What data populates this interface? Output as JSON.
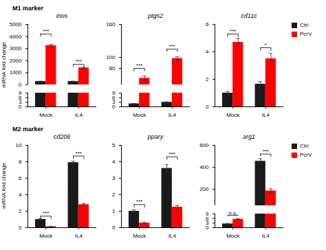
{
  "chart_data": [
    {
      "type": "bar",
      "title": "M1 marker",
      "ylabel": "mRNA fold change",
      "legend": "upper right",
      "categories": [
        "Mock",
        "IL4"
      ],
      "panels": [
        {
          "title": "inos",
          "series": [
            {
              "name": "Ctrl",
              "color": "#1a1a1a",
              "values": [
                280,
                280
              ],
              "errors": [
                25,
                25
              ]
            },
            {
              "name": "PcrV",
              "color": "#ff0000",
              "values": [
                3250,
                1400
              ],
              "errors": [
                90,
                55
              ]
            }
          ],
          "ylim": [
            [
              0,
              9
            ],
            [
              0,
              5000
            ]
          ],
          "yticks": [
            [
              0,
              3,
              6,
              9
            ],
            [
              0,
              1000,
              2000,
              3000,
              4000,
              5000
            ]
          ],
          "annotations": [
            {
              "text": "***",
              "category": "Mock",
              "y": 4200
            },
            {
              "text": "***",
              "category": "IL4",
              "y": 1700
            }
          ]
        },
        {
          "title": "ptgs2",
          "series": [
            {
              "name": "Ctrl",
              "color": "#1a1a1a",
              "values": [
                2,
                3
              ],
              "errors": [
                0.2,
                0.3
              ]
            },
            {
              "name": "PcrV",
              "color": "#ff0000",
              "values": [
                62,
                98
              ],
              "errors": [
                4,
                3
              ]
            }
          ],
          "ylim": [
            [
              0,
              9
            ],
            [
              50,
              160
            ]
          ],
          "yticks": [
            [
              0,
              3,
              6,
              9
            ],
            [
              80,
              100,
              160
            ]
          ],
          "annotations": [
            {
              "text": "***",
              "category": "Mock",
              "y": 80
            },
            {
              "text": "***",
              "category": "IL4",
              "y": 115
            }
          ]
        },
        {
          "title": "cd11c",
          "series": [
            {
              "name": "Ctrl",
              "color": "#1a1a1a",
              "values": [
                1.0,
                1.65
              ],
              "errors": [
                0.12,
                0.18
              ]
            },
            {
              "name": "PcrV",
              "color": "#ff0000",
              "values": [
                4.7,
                3.5
              ],
              "errors": [
                0.28,
                0.38
              ]
            }
          ],
          "ylim": [
            0,
            6
          ],
          "yticks": [
            0,
            2,
            4,
            6
          ],
          "annotations": [
            {
              "text": "***",
              "category": "Mock",
              "y": 5.3
            },
            {
              "text": "*",
              "category": "IL4",
              "y": 4.3
            }
          ]
        }
      ]
    },
    {
      "type": "bar",
      "title": "M2 marker",
      "ylabel": "mRNA fold change",
      "legend": "upper right",
      "categories": [
        "Mock",
        "IL4"
      ],
      "panels": [
        {
          "title": "cd206",
          "series": [
            {
              "name": "Ctrl",
              "color": "#1a1a1a",
              "values": [
                1.0,
                7.9
              ],
              "errors": [
                0.08,
                0.18
              ]
            },
            {
              "name": "PcrV",
              "color": "#ff0000",
              "values": [
                0.12,
                2.8
              ],
              "errors": [
                0.04,
                0.15
              ]
            }
          ],
          "ylim": [
            0,
            10
          ],
          "yticks": [
            0,
            2,
            4,
            6,
            8,
            10
          ],
          "annotations": [
            {
              "text": "***",
              "category": "Mock",
              "y": 1.4
            },
            {
              "text": "***",
              "category": "IL4",
              "y": 8.7
            }
          ]
        },
        {
          "title": "ppary",
          "series": [
            {
              "name": "Ctrl",
              "color": "#1a1a1a",
              "values": [
                1.0,
                3.6
              ],
              "errors": [
                0.08,
                0.22
              ]
            },
            {
              "name": "PcrV",
              "color": "#ff0000",
              "values": [
                0.28,
                1.25
              ],
              "errors": [
                0.04,
                0.1
              ]
            }
          ],
          "ylim": [
            0,
            5
          ],
          "yticks": [
            0,
            1,
            2,
            3,
            4,
            5
          ],
          "annotations": [
            {
              "text": "***",
              "category": "Mock",
              "y": 1.4
            },
            {
              "text": "***",
              "category": "IL4",
              "y": 4.3
            }
          ]
        },
        {
          "title": "arg1",
          "series": [
            {
              "name": "Ctrl",
              "color": "#1a1a1a",
              "values": [
                2.5,
                455
              ],
              "errors": [
                0.3,
                22
              ]
            },
            {
              "name": "PcrV",
              "color": "#ff0000",
              "values": [
                5.5,
                185
              ],
              "errors": [
                0.4,
                18
              ]
            }
          ],
          "ylim": [
            [
              0,
              9
            ],
            [
              50,
              600
            ]
          ],
          "yticks": [
            [
              0,
              3,
              6,
              9
            ],
            [
              200,
              400,
              600
            ]
          ],
          "annotations": [
            {
              "text": "n.s.",
              "category": "Mock",
              "y": 8.0
            },
            {
              "text": "***",
              "category": "IL4",
              "y": 520
            }
          ]
        }
      ]
    }
  ]
}
